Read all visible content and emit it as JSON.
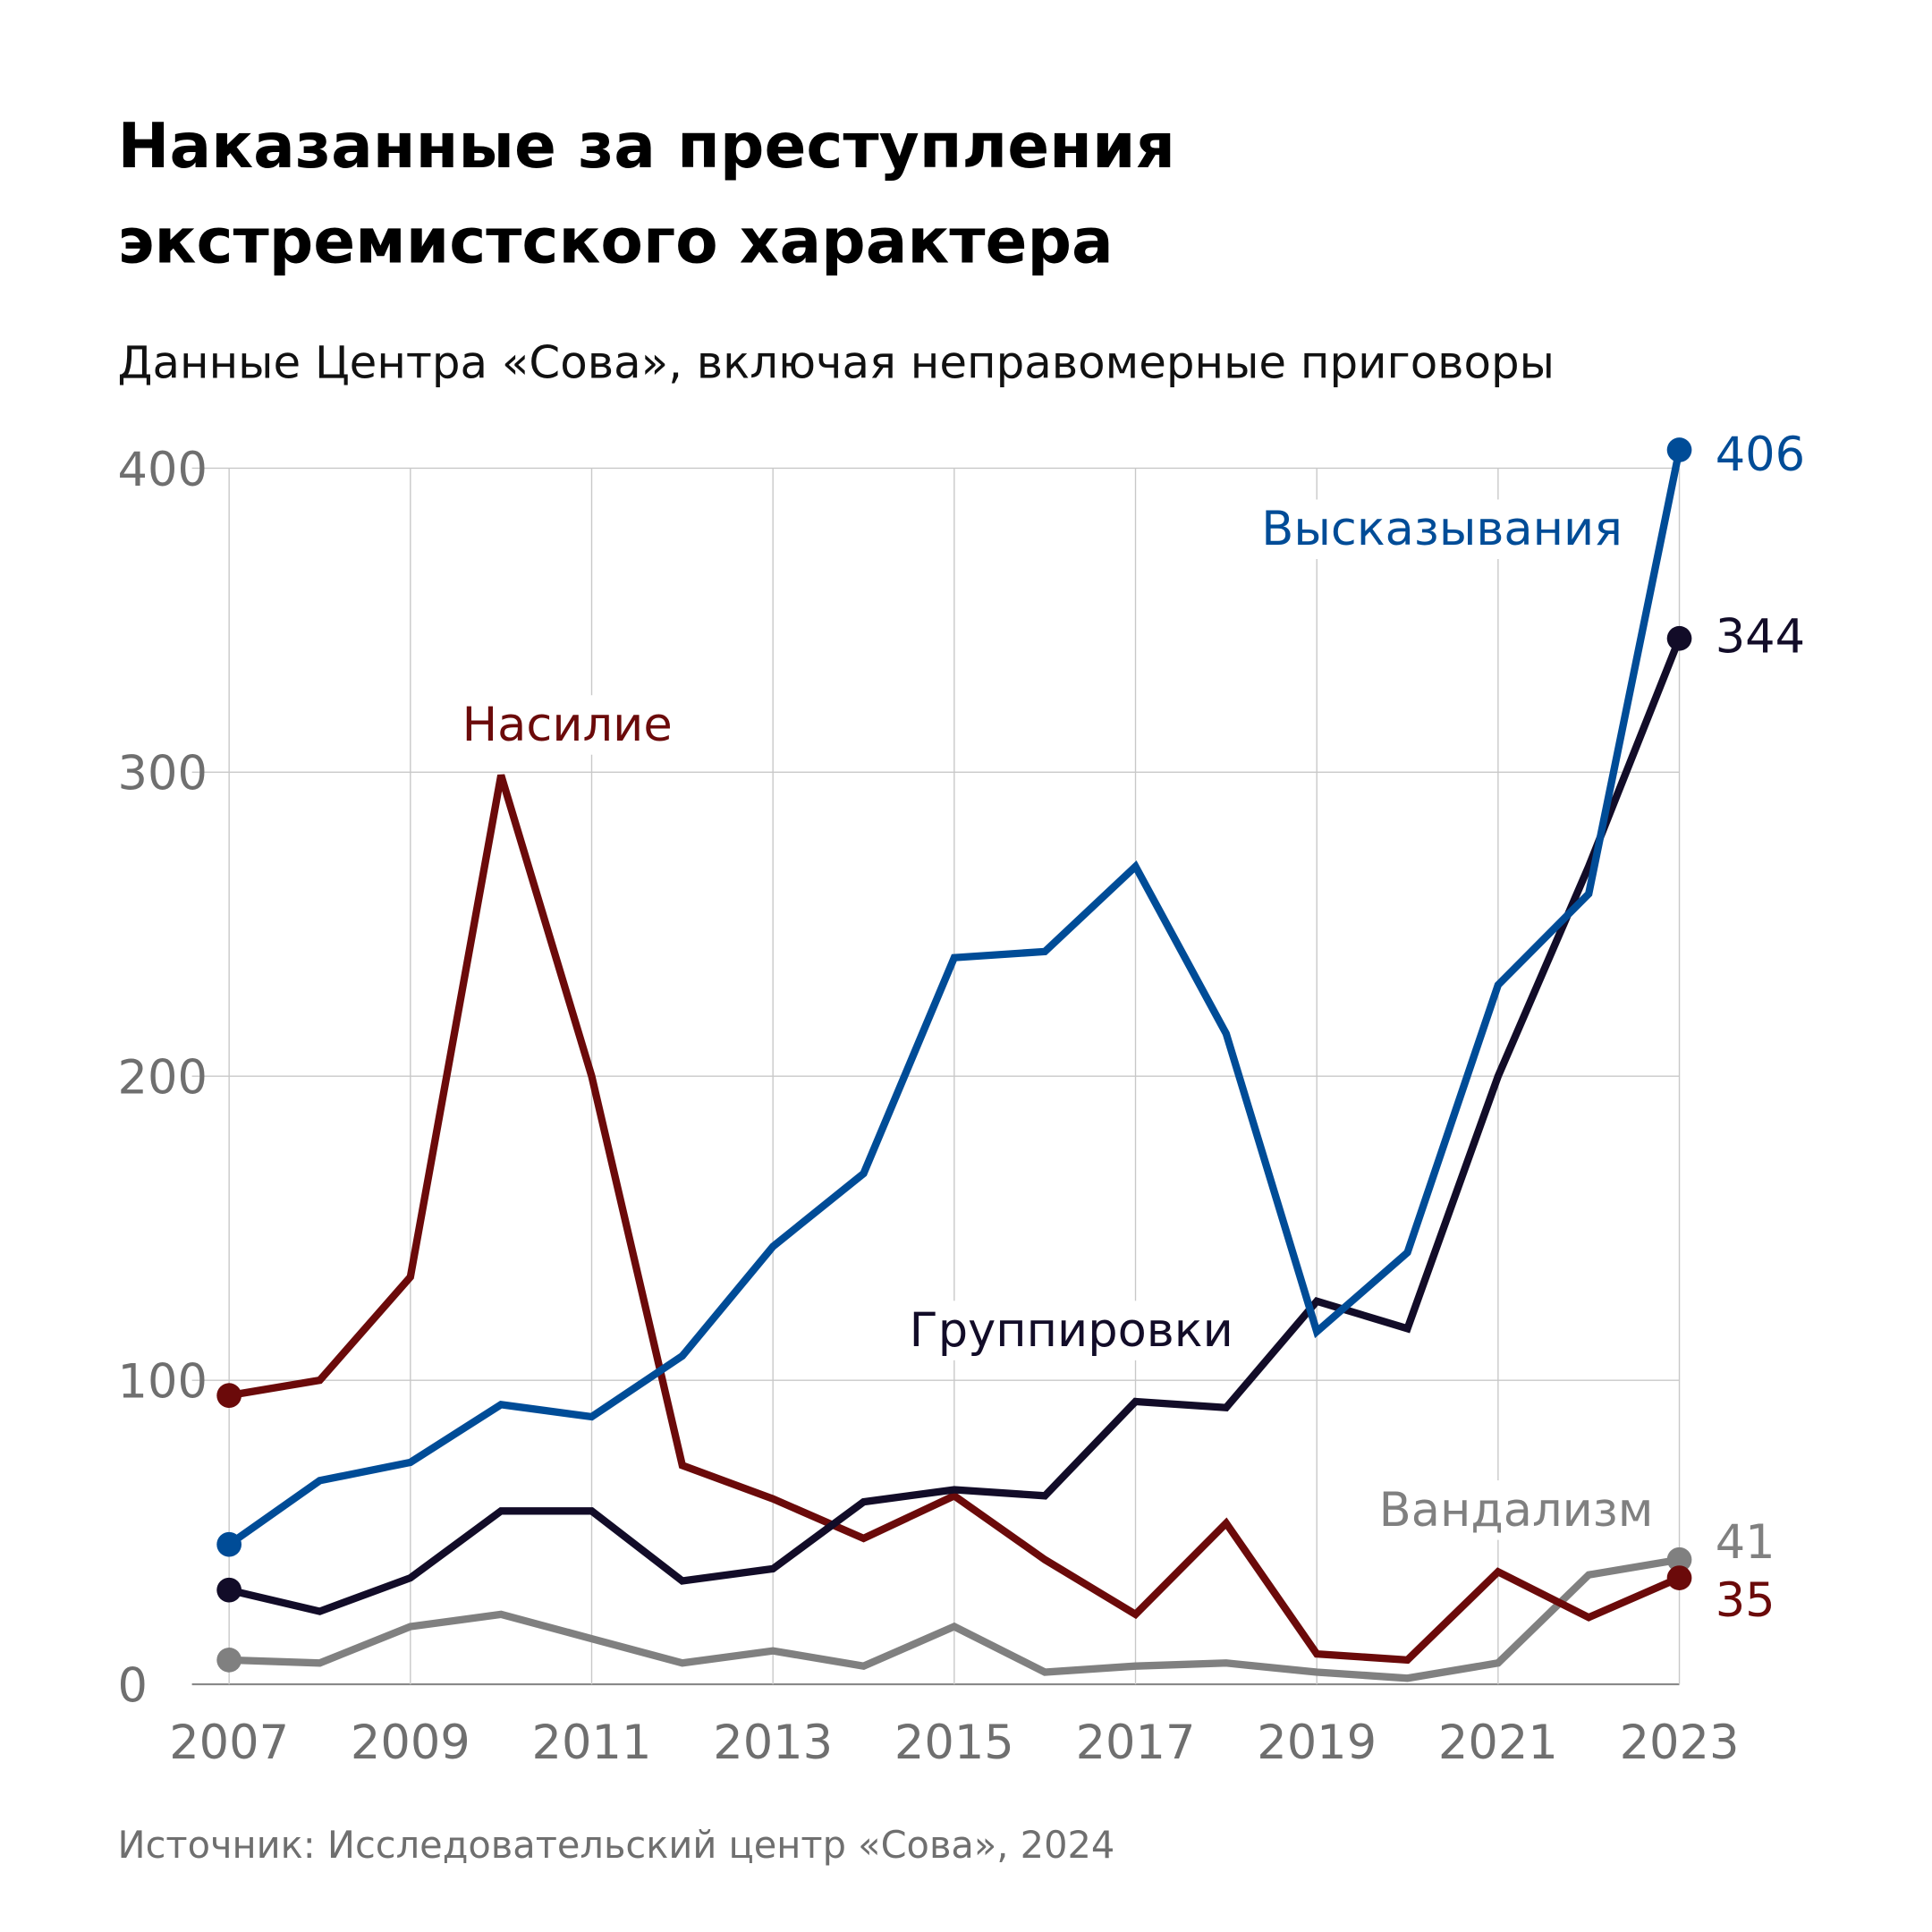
{
  "chart_data": {
    "type": "line",
    "title_lines": [
      "Наказанные за преступления",
      "экстремистского характера"
    ],
    "subtitle": "Данные Центра «Сова», включая неправомерные приговоры",
    "source": "Источник: Исследовательский центр «Сова», 2024",
    "xlabel": "",
    "ylabel": "",
    "ylim": [
      0,
      400
    ],
    "xlim": [
      2007,
      2023
    ],
    "grid": true,
    "x": [
      2007,
      2008,
      2009,
      2010,
      2011,
      2012,
      2013,
      2014,
      2015,
      2016,
      2017,
      2018,
      2019,
      2020,
      2021,
      2022,
      2023
    ],
    "x_ticks": [
      "2007",
      "2009",
      "2011",
      "2013",
      "2015",
      "2017",
      "2019",
      "2021",
      "2023"
    ],
    "y_ticks": [
      "0",
      "100",
      "200",
      "300",
      "400"
    ],
    "series": [
      {
        "name": "Вандализм",
        "color": "#808080",
        "end_label": "41",
        "values": [
          8,
          7,
          19,
          23,
          15,
          7,
          11,
          6,
          19,
          4,
          6,
          7,
          4,
          2,
          7,
          36,
          41
        ]
      },
      {
        "name": "Насилие",
        "color": "#6b0a0a",
        "end_label": "35",
        "values": [
          95,
          100,
          134,
          299,
          200,
          72,
          61,
          48,
          62,
          41,
          23,
          53,
          10,
          8,
          37,
          22,
          35
        ]
      },
      {
        "name": "Группировки",
        "color": "#120c28",
        "end_label": "344",
        "values": [
          31,
          24,
          35,
          57,
          57,
          34,
          38,
          60,
          64,
          62,
          93,
          91,
          126,
          117,
          200,
          269,
          344
        ]
      },
      {
        "name": "Высказывания",
        "color": "#004c97",
        "end_label": "406",
        "values": [
          46,
          67,
          73,
          92,
          88,
          108,
          144,
          168,
          239,
          241,
          269,
          214,
          116,
          142,
          230,
          260,
          406
        ]
      }
    ]
  }
}
